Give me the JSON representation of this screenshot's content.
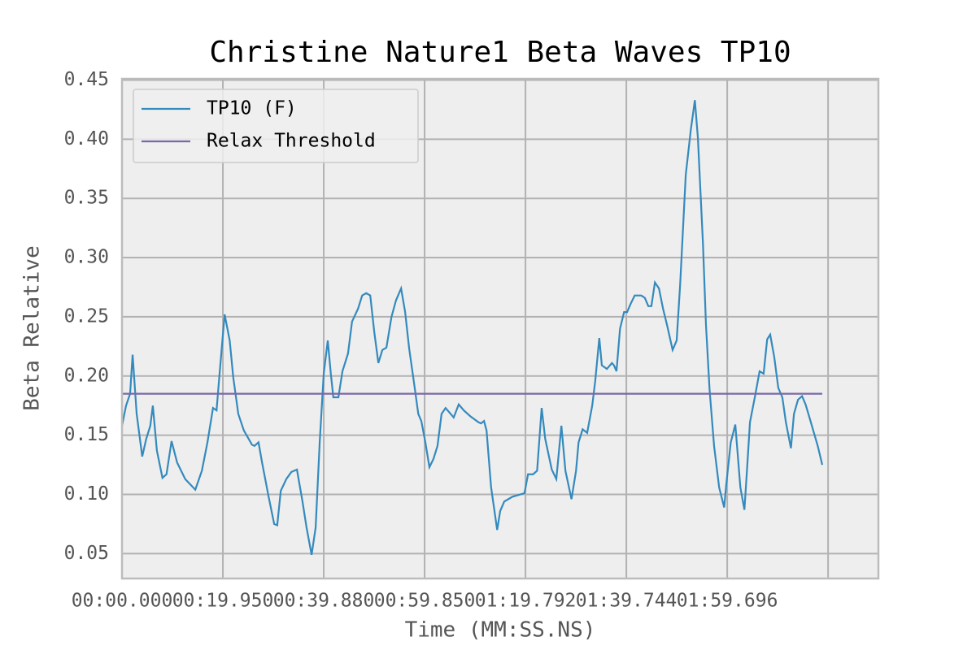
{
  "chart_data": {
    "type": "line",
    "title": "Christine Nature1 Beta Waves TP10",
    "xlabel": "Time (MM:SS.NS)",
    "ylabel": "Beta Relative",
    "xlim": [
      0,
      149.6
    ],
    "ylim": [
      0.029,
      0.451
    ],
    "xticks": [
      {
        "value": 0,
        "label": "00:00.000"
      },
      {
        "value": 19.95,
        "label": "00:19.950"
      },
      {
        "value": 39.9,
        "label": "00:39.880"
      },
      {
        "value": 59.85,
        "label": "00:59.850"
      },
      {
        "value": 79.8,
        "label": "01:19.792"
      },
      {
        "value": 99.75,
        "label": "01:39.744"
      },
      {
        "value": 119.7,
        "label": "01:59.696"
      },
      {
        "value": 139.65,
        "label": null
      }
    ],
    "yticks": [
      {
        "value": 0.05,
        "label": "0.05"
      },
      {
        "value": 0.1,
        "label": "0.10"
      },
      {
        "value": 0.15,
        "label": "0.15"
      },
      {
        "value": 0.2,
        "label": "0.20"
      },
      {
        "value": 0.25,
        "label": "0.25"
      },
      {
        "value": 0.3,
        "label": "0.30"
      },
      {
        "value": 0.35,
        "label": "0.35"
      },
      {
        "value": 0.4,
        "label": "0.40"
      },
      {
        "value": 0.45,
        "label": "0.45"
      }
    ],
    "grid": true,
    "legend": "upper left",
    "series": [
      {
        "name": "TP10 (F)",
        "color": "#348abd",
        "x": [
          0,
          0.8,
          1.6,
          2.1,
          2.9,
          4.0,
          4.8,
          5.6,
          6.1,
          6.9,
          8.0,
          8.8,
          9.8,
          10.9,
          12.5,
          14.5,
          15.8,
          16.9,
          18.0,
          18.7,
          19.3,
          20.3,
          21.3,
          22.0,
          23.0,
          24.1,
          25.7,
          26.2,
          27.0,
          27.7,
          29.0,
          30.1,
          30.7,
          31.4,
          32.5,
          33.5,
          34.6,
          35.7,
          36.5,
          37.5,
          38.3,
          39.1,
          39.9,
          40.7,
          41.3,
          41.8,
          42.8,
          43.6,
          44.7,
          45.5,
          46.7,
          47.5,
          48.3,
          49.1,
          49.9,
          50.7,
          51.5,
          52.3,
          53.3,
          54.2,
          55.2,
          56.0,
          56.8,
          57.6,
          58.6,
          59.2,
          60.0,
          60.8,
          61.6,
          62.4,
          63.2,
          64.0,
          64.8,
          65.6,
          66.6,
          67.6,
          68.9,
          70.5,
          71.0,
          71.6,
          72.1,
          73.0,
          74.2,
          74.8,
          75.6,
          77.2,
          79.6,
          80.3,
          81.3,
          82.1,
          83.0,
          83.7,
          85.0,
          85.9,
          86.9,
          87.7,
          88.9,
          89.8,
          90.3,
          91.1,
          92.0,
          93.0,
          93.6,
          94.4,
          94.9,
          95.9,
          96.9,
          97.3,
          97.8,
          98.5,
          99.3,
          99.9,
          100.6,
          101.4,
          102.7,
          103.4,
          104.1,
          104.7,
          105.4,
          106.2,
          107.0,
          107.8,
          108.9,
          109.7,
          110.4,
          111.5,
          112.5,
          113.3,
          113.9,
          114.9,
          115.5,
          116.2,
          117.1,
          118.1,
          119.1,
          119.5,
          120.4,
          121.3,
          122.3,
          123.1,
          123.6,
          124.2,
          125.2,
          126.1,
          126.9,
          127.6,
          128.2,
          129.0,
          129.8,
          130.6,
          131.3,
          132.3,
          132.9,
          133.7,
          134.5,
          135.2,
          136.1,
          137.6,
          138.5
        ],
        "values": [
          0.158,
          0.175,
          0.185,
          0.218,
          0.168,
          0.132,
          0.147,
          0.158,
          0.175,
          0.137,
          0.114,
          0.117,
          0.145,
          0.127,
          0.113,
          0.104,
          0.12,
          0.144,
          0.173,
          0.171,
          0.202,
          0.252,
          0.23,
          0.199,
          0.168,
          0.154,
          0.142,
          0.141,
          0.144,
          0.127,
          0.098,
          0.075,
          0.074,
          0.103,
          0.113,
          0.119,
          0.121,
          0.094,
          0.072,
          0.049,
          0.072,
          0.144,
          0.202,
          0.23,
          0.202,
          0.182,
          0.182,
          0.204,
          0.219,
          0.246,
          0.257,
          0.268,
          0.27,
          0.268,
          0.237,
          0.211,
          0.222,
          0.224,
          0.25,
          0.264,
          0.274,
          0.254,
          0.223,
          0.199,
          0.168,
          0.162,
          0.144,
          0.123,
          0.13,
          0.141,
          0.168,
          0.173,
          0.169,
          0.165,
          0.176,
          0.171,
          0.166,
          0.161,
          0.16,
          0.162,
          0.154,
          0.106,
          0.07,
          0.086,
          0.094,
          0.098,
          0.101,
          0.117,
          0.117,
          0.12,
          0.173,
          0.147,
          0.121,
          0.113,
          0.158,
          0.12,
          0.096,
          0.12,
          0.144,
          0.155,
          0.152,
          0.175,
          0.196,
          0.232,
          0.209,
          0.206,
          0.211,
          0.209,
          0.204,
          0.24,
          0.254,
          0.254,
          0.261,
          0.268,
          0.268,
          0.266,
          0.259,
          0.259,
          0.279,
          0.274,
          0.257,
          0.243,
          0.222,
          0.23,
          0.278,
          0.37,
          0.408,
          0.433,
          0.401,
          0.312,
          0.243,
          0.189,
          0.141,
          0.106,
          0.089,
          0.108,
          0.144,
          0.159,
          0.106,
          0.087,
          0.12,
          0.161,
          0.183,
          0.204,
          0.202,
          0.231,
          0.235,
          0.216,
          0.19,
          0.182,
          0.161,
          0.139,
          0.168,
          0.18,
          0.183,
          0.176,
          0.163,
          0.141,
          0.125
        ]
      },
      {
        "name": "Relax Threshold",
        "color": "#7a68a6",
        "x": [
          0,
          138.5
        ],
        "values": [
          0.185,
          0.185
        ]
      }
    ]
  }
}
